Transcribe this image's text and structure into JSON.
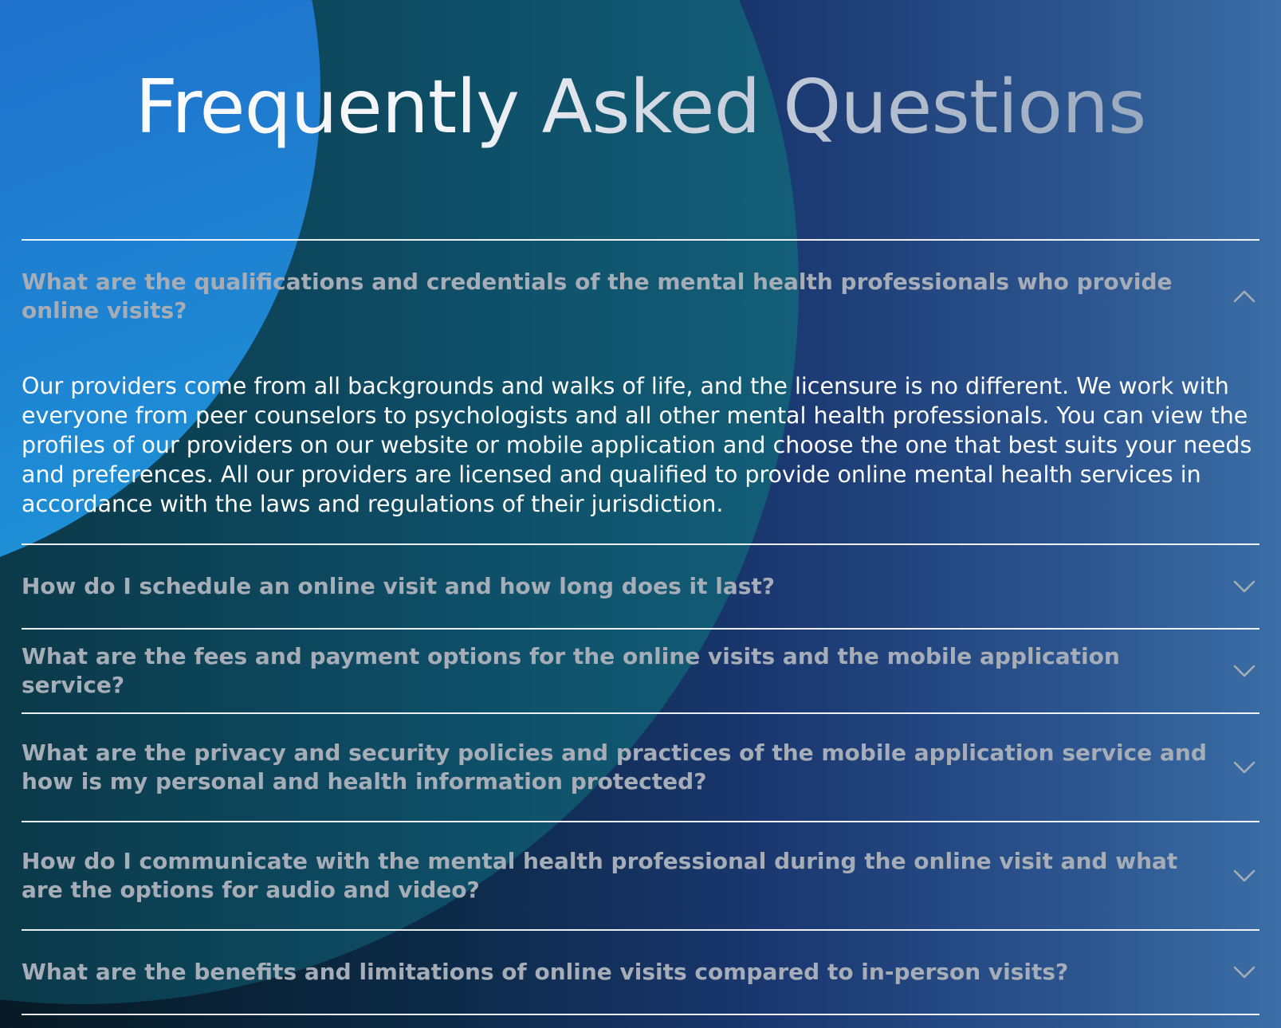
{
  "header": {
    "title": "Frequently Asked Questions"
  },
  "faq": {
    "items": [
      {
        "question": "What are the qualifications and credentials of the mental health professionals who provide online visits?",
        "answer": "Our providers come from all backgrounds and walks of life, and the licensure is no different. We work with everyone from peer counselors to psychologists and all other mental health professionals. You can view the profiles of our providers on our website or mobile application and choose the one that best suits your needs and preferences. All our providers are licensed and qualified to provide online mental health services in accordance with the laws and regulations of their jurisdiction.",
        "expanded": true,
        "icon": "chevron-up-icon"
      },
      {
        "question": "How do I schedule an online visit and how long does it last?",
        "expanded": false,
        "icon": "chevron-down-icon"
      },
      {
        "question": "What are the fees and payment options for the online visits and the mobile application service?",
        "expanded": false,
        "icon": "chevron-down-icon"
      },
      {
        "question": "What are the privacy and security policies and practices of the mobile application service and how is my personal and health information protected?",
        "expanded": false,
        "icon": "chevron-down-icon"
      },
      {
        "question": "How do I communicate with the mental health professional during the online visit and what are the options for audio and video?",
        "expanded": false,
        "icon": "chevron-down-icon"
      },
      {
        "question": "What are the benefits and limitations of online visits compared to in-person visits?",
        "expanded": false,
        "icon": "chevron-down-icon"
      }
    ]
  },
  "colors": {
    "question_text": "#a7adb6",
    "answer_text": "#ffffff",
    "divider": "#ffffff",
    "accent_blue": "#1e72cc",
    "accent_teal": "#0e4d66"
  }
}
